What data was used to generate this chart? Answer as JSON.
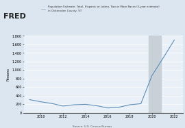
{
  "years": [
    2009,
    2010,
    2011,
    2012,
    2013,
    2014,
    2015,
    2016,
    2017,
    2018,
    2019,
    2020,
    2021,
    2022
  ],
  "values": [
    305,
    255,
    215,
    155,
    185,
    195,
    165,
    110,
    125,
    185,
    210,
    870,
    1280,
    1700
  ],
  "line_color": "#5b8db8",
  "background_color": "#dce6f0",
  "plot_bg_color": "#eaf0f7",
  "shade_start": 2019.7,
  "shade_end": 2020.8,
  "shade_color": "#c8d0d8",
  "ylabel": "Persons",
  "source": "Source: U.S. Census Bureau",
  "fred_text": "FRED",
  "legend_text": "Population Estimate, Total, Hispanic or Latino, Two or More Races (5-year estimate)\nin Chittenden County, VT",
  "ylim": [
    0,
    1800
  ],
  "yticks": [
    0,
    200,
    400,
    600,
    800,
    1000,
    1200,
    1400,
    1600,
    1800
  ],
  "xlim": [
    2008.5,
    2022.8
  ],
  "xticks": [
    2010,
    2012,
    2014,
    2016,
    2018,
    2020,
    2022
  ]
}
